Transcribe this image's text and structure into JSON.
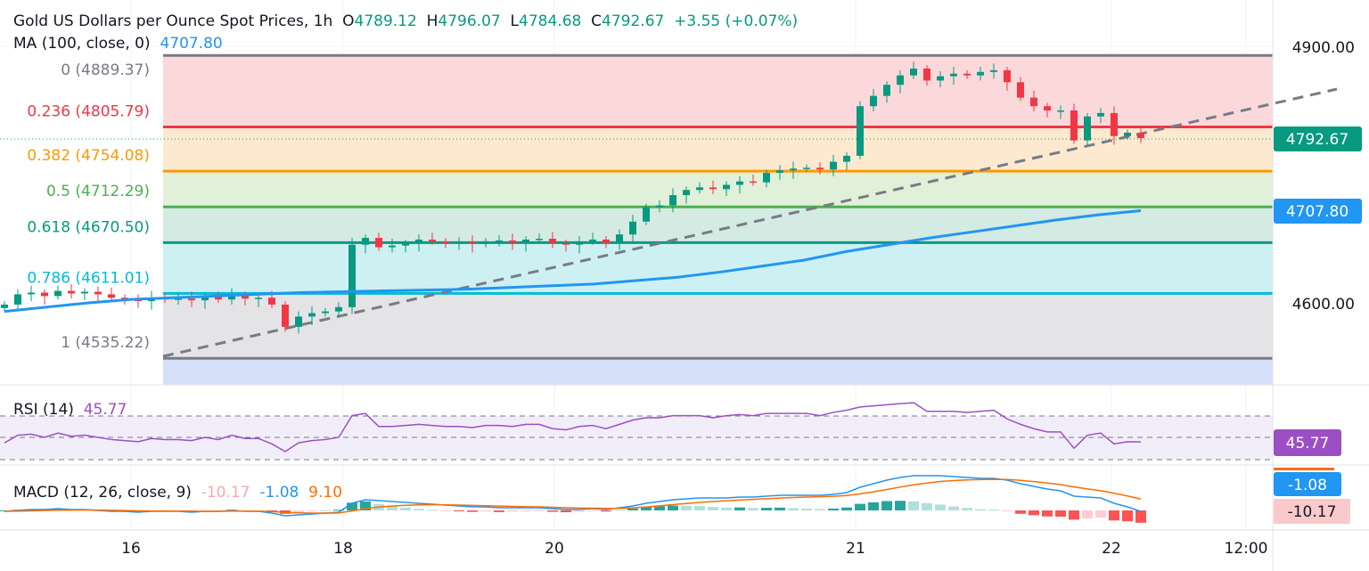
{
  "header": {
    "title": "Gold US Dollars per Ounce Spot Prices, 1h",
    "o_label": "O",
    "o": "4789.12",
    "h_label": "H",
    "h": "4796.07",
    "l_label": "L",
    "l": "4784.68",
    "c_label": "C",
    "c": "4792.67",
    "change": "+3.55 (+0.07%)"
  },
  "ma": {
    "label": "MA (100, close, 0)",
    "value": "4707.80",
    "color": "#2196f3"
  },
  "rsi": {
    "label": "RSI (14)",
    "value": "45.77",
    "color": "#9c4fc4"
  },
  "macd": {
    "label": "MACD (12, 26, close, 9)",
    "hist": "-10.17",
    "macd": "-1.08",
    "signal": "9.10"
  },
  "price_axis": {
    "ticks": [
      "4900.00",
      "4600.00"
    ],
    "last_price": "4792.67",
    "ma_price": "4707.80"
  },
  "time_axis": [
    "16",
    "18",
    "20",
    "21",
    "22",
    "12:00"
  ],
  "fib_levels": [
    {
      "label": "0 (4889.37)",
      "level": "0",
      "price": 4889.37,
      "color": "#787b86",
      "fill": "#fbd9db"
    },
    {
      "label": "0.236 (4805.79)",
      "level": "0.236",
      "price": 4805.79,
      "color": "#f23645",
      "fill": "#fde9cf"
    },
    {
      "label": "0.382 (4754.08)",
      "level": "0.382",
      "price": 4754.08,
      "color": "#ff9800",
      "fill": "#e1f0d9"
    },
    {
      "label": "0.5 (4712.29)",
      "level": "0.5",
      "price": 4712.29,
      "color": "#4caf50",
      "fill": "#d3ebe2"
    },
    {
      "label": "0.618 (4670.50)",
      "level": "0.618",
      "price": 4670.5,
      "color": "#089981",
      "fill": "#cdf0f3"
    },
    {
      "label": "0.786 (4611.01)",
      "level": "0.786",
      "price": 4611.01,
      "color": "#00bcd4",
      "fill": "#e4e4e6"
    },
    {
      "label": "1 (4535.22)",
      "level": "1",
      "price": 4535.22,
      "color": "#787b86",
      "fill": "#d6e0f8"
    }
  ],
  "chart_data": {
    "type": "candlestick",
    "title": "Gold US Dollars per Ounce Spot Prices, 1h",
    "closes": [
      4598,
      4610,
      4612,
      4608,
      4614,
      4611,
      4613,
      4610,
      4606,
      4604,
      4602,
      4606,
      4604,
      4605,
      4603,
      4607,
      4604,
      4609,
      4605,
      4606,
      4598,
      4572,
      4584,
      4588,
      4590,
      4595,
      4668,
      4676,
      4665,
      4667,
      4670,
      4674,
      4672,
      4670,
      4671,
      4669,
      4672,
      4673,
      4670,
      4674,
      4675,
      4670,
      4668,
      4672,
      4674,
      4670,
      4680,
      4695,
      4712,
      4714,
      4726,
      4732,
      4735,
      4733,
      4738,
      4742,
      4741,
      4752,
      4755,
      4757,
      4758,
      4756,
      4765,
      4772,
      4830,
      4842,
      4855,
      4866,
      4874,
      4860,
      4865,
      4868,
      4866,
      4870,
      4872,
      4858,
      4840,
      4830,
      4825,
      4825,
      4790,
      4818,
      4822,
      4795,
      4799,
      4792.67
    ],
    "ma100": [
      4590,
      4595,
      4600,
      4604,
      4606,
      4608,
      4610,
      4612,
      4613,
      4614,
      4615,
      4616,
      4618,
      4620,
      4622,
      4626,
      4630,
      4636,
      4643,
      4650,
      4660,
      4668,
      4676,
      4683,
      4690,
      4697,
      4703,
      4707.8
    ],
    "rsi": [
      45,
      52,
      53,
      50,
      54,
      51,
      52,
      50,
      48,
      47,
      46,
      49,
      48,
      48,
      47,
      50,
      48,
      52,
      49,
      49,
      44,
      37,
      45,
      47,
      48,
      50,
      70,
      72,
      60,
      60,
      61,
      62,
      61,
      60,
      60,
      59,
      61,
      61,
      60,
      62,
      62,
      58,
      57,
      60,
      61,
      58,
      62,
      66,
      68,
      68,
      70,
      70,
      70,
      68,
      70,
      71,
      70,
      72,
      72,
      72,
      72,
      70,
      73,
      75,
      78,
      79,
      80,
      81,
      82,
      74,
      74,
      74,
      73,
      74,
      75,
      67,
      62,
      58,
      55,
      55,
      40,
      52,
      54,
      44,
      46,
      45.77
    ],
    "macd": [
      -1,
      0,
      1,
      1,
      2,
      1,
      1,
      0,
      -1,
      -1,
      -2,
      -1,
      -1,
      -1,
      -2,
      -1,
      -1,
      0,
      -1,
      -1,
      -3,
      -6,
      -5,
      -4,
      -3,
      -2,
      8,
      12,
      11,
      10,
      9,
      8,
      7,
      6,
      5,
      4,
      4,
      3,
      3,
      3,
      3,
      2,
      1,
      1,
      2,
      1,
      3,
      5,
      8,
      10,
      12,
      13,
      14,
      14,
      14,
      15,
      15,
      16,
      17,
      17,
      17,
      17,
      18,
      20,
      26,
      30,
      34,
      37,
      39,
      39,
      39,
      38,
      37,
      36,
      36,
      34,
      30,
      27,
      24,
      22,
      16,
      15,
      14,
      8,
      4,
      -1.08
    ],
    "rsi_levels": [
      70,
      50,
      30
    ],
    "price_range": [
      4520,
      4920
    ]
  }
}
